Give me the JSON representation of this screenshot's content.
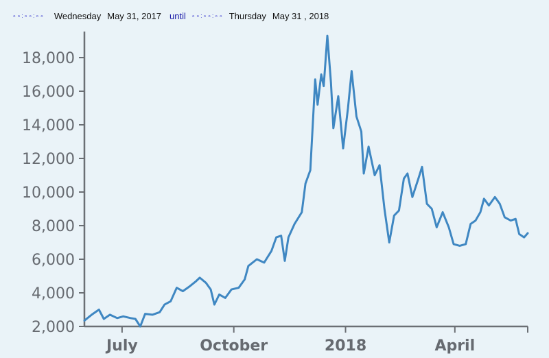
{
  "header": {
    "dots_left": "∘∘:∘∘:∘∘",
    "start_day": "Wednesday",
    "start_date": "May 31, 2017",
    "until_label": "until",
    "dots_right": "∘∘:∘∘:∘∘",
    "end_day": "Thursday",
    "end_date": "May 31 , 2018"
  },
  "chart_data": {
    "type": "line",
    "title": "",
    "xlabel": "",
    "ylabel": "",
    "x_range": [
      "2017-05-31",
      "2018-05-31"
    ],
    "ylim": [
      2000,
      19500
    ],
    "y_ticks": [
      2000,
      4000,
      6000,
      8000,
      10000,
      12000,
      14000,
      16000,
      18000
    ],
    "y_tick_labels": [
      "2,000",
      "4,000",
      "6,000",
      "8,000",
      "10,000",
      "12,000",
      "14,000",
      "16,000",
      "18,000"
    ],
    "x_ticks": [
      {
        "date": "2017-07-01",
        "label": "July"
      },
      {
        "date": "2017-10-01",
        "label": "October"
      },
      {
        "date": "2018-01-01",
        "label": "2018"
      },
      {
        "date": "2018-04-01",
        "label": "April"
      }
    ],
    "grid": false,
    "line_color": "#3f87c2",
    "series": [
      {
        "values": [
          [
            "2017-05-31",
            2350
          ],
          [
            "2017-06-06",
            2700
          ],
          [
            "2017-06-12",
            3000
          ],
          [
            "2017-06-16",
            2450
          ],
          [
            "2017-06-21",
            2700
          ],
          [
            "2017-06-27",
            2500
          ],
          [
            "2017-07-02",
            2600
          ],
          [
            "2017-07-08",
            2500
          ],
          [
            "2017-07-12",
            2450
          ],
          [
            "2017-07-16",
            2000
          ],
          [
            "2017-07-20",
            2750
          ],
          [
            "2017-07-26",
            2700
          ],
          [
            "2017-08-01",
            2850
          ],
          [
            "2017-08-05",
            3300
          ],
          [
            "2017-08-10",
            3500
          ],
          [
            "2017-08-15",
            4300
          ],
          [
            "2017-08-20",
            4100
          ],
          [
            "2017-08-25",
            4350
          ],
          [
            "2017-08-31",
            4700
          ],
          [
            "2017-09-03",
            4900
          ],
          [
            "2017-09-08",
            4600
          ],
          [
            "2017-09-12",
            4200
          ],
          [
            "2017-09-15",
            3300
          ],
          [
            "2017-09-19",
            3900
          ],
          [
            "2017-09-24",
            3700
          ],
          [
            "2017-09-29",
            4200
          ],
          [
            "2017-10-05",
            4300
          ],
          [
            "2017-10-10",
            4800
          ],
          [
            "2017-10-13",
            5600
          ],
          [
            "2017-10-20",
            6000
          ],
          [
            "2017-10-26",
            5800
          ],
          [
            "2017-11-01",
            6500
          ],
          [
            "2017-11-05",
            7300
          ],
          [
            "2017-11-09",
            7400
          ],
          [
            "2017-11-12",
            5900
          ],
          [
            "2017-11-15",
            7300
          ],
          [
            "2017-11-20",
            8100
          ],
          [
            "2017-11-26",
            8800
          ],
          [
            "2017-11-29",
            10500
          ],
          [
            "2017-12-03",
            11300
          ],
          [
            "2017-12-07",
            16700
          ],
          [
            "2017-12-09",
            15200
          ],
          [
            "2017-12-12",
            17000
          ],
          [
            "2017-12-14",
            16300
          ],
          [
            "2017-12-17",
            19300
          ],
          [
            "2017-12-20",
            16500
          ],
          [
            "2017-12-22",
            13800
          ],
          [
            "2017-12-26",
            15700
          ],
          [
            "2017-12-30",
            12600
          ],
          [
            "2018-01-03",
            15000
          ],
          [
            "2018-01-06",
            17200
          ],
          [
            "2018-01-10",
            14500
          ],
          [
            "2018-01-14",
            13600
          ],
          [
            "2018-01-16",
            11100
          ],
          [
            "2018-01-20",
            12700
          ],
          [
            "2018-01-25",
            11000
          ],
          [
            "2018-01-29",
            11600
          ],
          [
            "2018-02-02",
            9000
          ],
          [
            "2018-02-06",
            7000
          ],
          [
            "2018-02-10",
            8600
          ],
          [
            "2018-02-14",
            8900
          ],
          [
            "2018-02-18",
            10800
          ],
          [
            "2018-02-21",
            11100
          ],
          [
            "2018-02-25",
            9700
          ],
          [
            "2018-03-02",
            10800
          ],
          [
            "2018-03-05",
            11500
          ],
          [
            "2018-03-09",
            9300
          ],
          [
            "2018-03-13",
            9000
          ],
          [
            "2018-03-17",
            7900
          ],
          [
            "2018-03-22",
            8800
          ],
          [
            "2018-03-27",
            7900
          ],
          [
            "2018-03-31",
            6900
          ],
          [
            "2018-04-05",
            6800
          ],
          [
            "2018-04-10",
            6900
          ],
          [
            "2018-04-14",
            8100
          ],
          [
            "2018-04-18",
            8300
          ],
          [
            "2018-04-22",
            8800
          ],
          [
            "2018-04-25",
            9600
          ],
          [
            "2018-04-29",
            9200
          ],
          [
            "2018-05-04",
            9700
          ],
          [
            "2018-05-08",
            9300
          ],
          [
            "2018-05-12",
            8500
          ],
          [
            "2018-05-17",
            8300
          ],
          [
            "2018-05-21",
            8400
          ],
          [
            "2018-05-24",
            7500
          ],
          [
            "2018-05-28",
            7300
          ],
          [
            "2018-05-31",
            7550
          ]
        ]
      }
    ]
  }
}
